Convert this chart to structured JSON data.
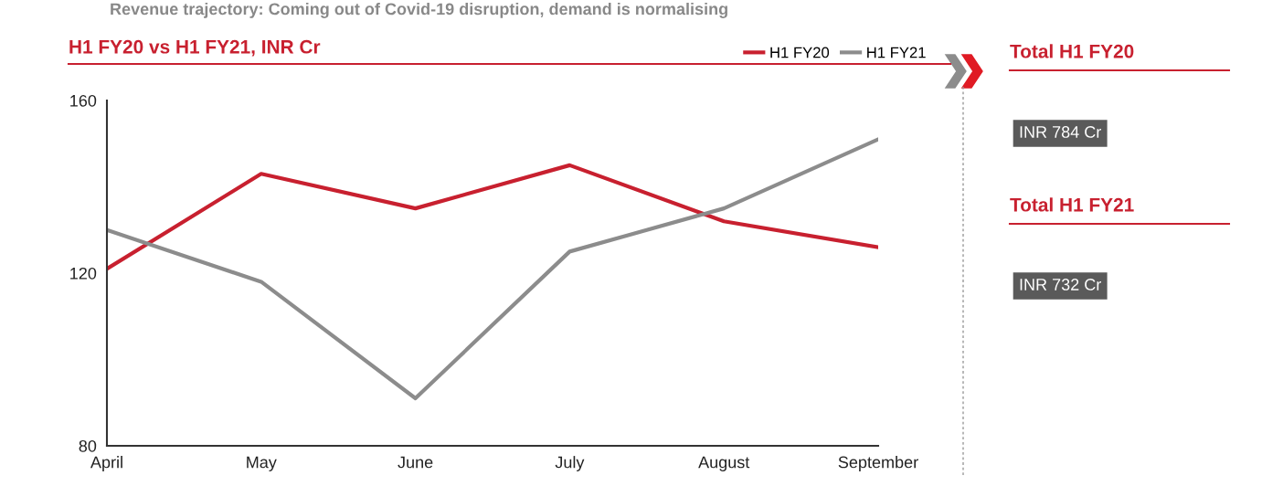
{
  "chart_data": {
    "type": "line",
    "title": "Revenue trajectory: Coming out of Covid-19 disruption, demand is normalising",
    "subtitle": "H1 FY20 vs H1 FY21, INR Cr",
    "categories": [
      "April",
      "May",
      "June",
      "July",
      "August",
      "September"
    ],
    "series": [
      {
        "name": "H1 FY20",
        "color": "#c8202f",
        "values": [
          121,
          143,
          135,
          145,
          132,
          126
        ]
      },
      {
        "name": "H1 FY21",
        "color": "#8c8c8c",
        "values": [
          130,
          118,
          91,
          125,
          135,
          151
        ]
      }
    ],
    "ylim": [
      80,
      160
    ],
    "yticks": [
      80,
      120,
      160
    ],
    "grid": false,
    "legend": "top right",
    "marker": "none",
    "line_style": "solid",
    "annotations": [
      "Total H1 FY20",
      "INR 784 Cr",
      "Total H1 FY21",
      "INR 732 Cr"
    ]
  }
}
